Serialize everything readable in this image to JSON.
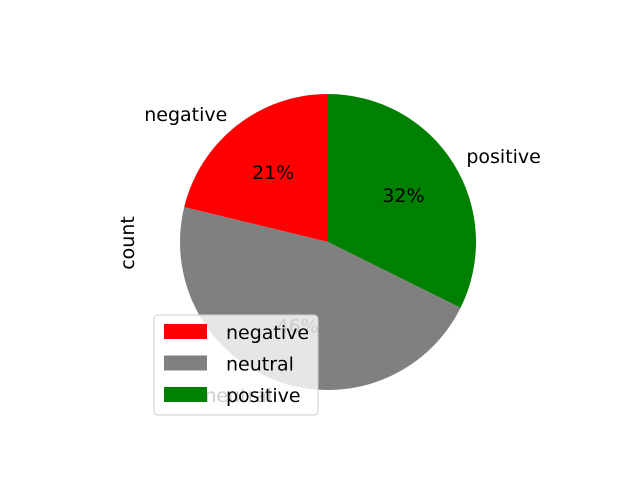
{
  "chart_data": {
    "type": "pie",
    "ylabel": "count",
    "start_angle_deg": 90,
    "counterclock": true,
    "slices": [
      {
        "label": "negative",
        "pct_text": "21%",
        "value": 21,
        "color": "#ff0000"
      },
      {
        "label": "neutral",
        "pct_text": "46%",
        "value": 46,
        "color": "#808080"
      },
      {
        "label": "positive",
        "pct_text": "32%",
        "value": 32,
        "color": "#008000"
      }
    ],
    "legend": {
      "placement": "lower-left",
      "entries": [
        {
          "label": "negative",
          "color": "#ff0000"
        },
        {
          "label": "neutral",
          "color": "#808080"
        },
        {
          "label": "positive",
          "color": "#008000"
        }
      ]
    }
  }
}
